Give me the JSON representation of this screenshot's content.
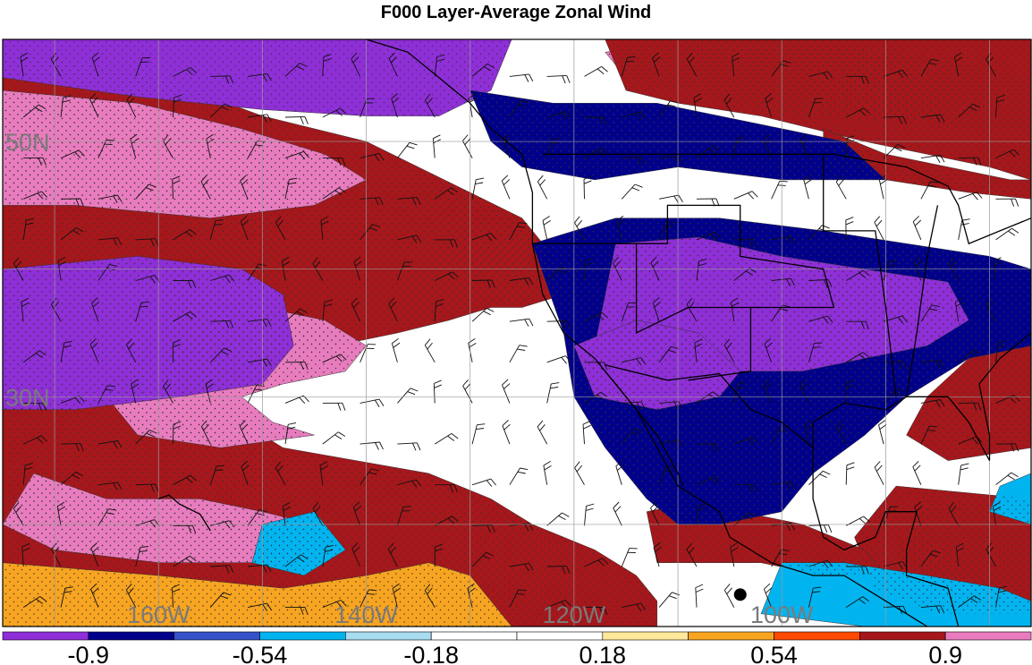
{
  "chart_data": {
    "type": "heatmap",
    "title": "F000 Layer-Average Zonal Wind",
    "lat_labels": [
      {
        "lat": 50,
        "text": "50N"
      },
      {
        "lat": 30,
        "text": "30N"
      }
    ],
    "lon_labels": [
      {
        "lon": -160,
        "text": "160W"
      },
      {
        "lon": -140,
        "text": "140W"
      },
      {
        "lon": -120,
        "text": "120W"
      },
      {
        "lon": -100,
        "text": "100W"
      }
    ],
    "grid": true,
    "colorbar": {
      "min": -1.08,
      "max": 1.08,
      "step": 0.18,
      "tick_labels": [
        "-0.9",
        "-0.54",
        "-0.18",
        "0.18",
        "0.54",
        "0.9"
      ],
      "tick_values": [
        -0.9,
        -0.54,
        -0.18,
        0.18,
        0.54,
        0.9
      ],
      "colors": [
        "#8f2fd8",
        "#00008b",
        "#3552c9",
        "#01b4f0",
        "#a8dcf0",
        "#ffffff",
        "#ffffff",
        "#fee79a",
        "#f7a421",
        "#ff4a00",
        "#a6171b",
        "#e87cbe"
      ]
    },
    "extent": {
      "lon_min": -175,
      "lon_max": -76,
      "lat_min": 12,
      "lat_max": 58
    },
    "regions": [
      {
        "value": 0.72,
        "lonlat": [
          [
            -175,
            57
          ],
          [
            -160,
            55
          ],
          [
            -150,
            52
          ],
          [
            -140,
            50
          ],
          [
            -135,
            48
          ],
          [
            -130,
            46
          ],
          [
            -125,
            44
          ],
          [
            -122,
            41
          ],
          [
            -121,
            38
          ],
          [
            -125,
            37
          ],
          [
            -128,
            37
          ],
          [
            -132,
            36
          ],
          [
            -137,
            35
          ],
          [
            -143,
            34
          ],
          [
            -150,
            32
          ],
          [
            -154,
            30
          ],
          [
            -150,
            27
          ],
          [
            -148,
            26
          ],
          [
            -141,
            25
          ],
          [
            -134,
            24
          ],
          [
            -128,
            22
          ],
          [
            -124,
            20
          ],
          [
            -118,
            18
          ],
          [
            -114,
            16
          ],
          [
            -112,
            14
          ],
          [
            -112,
            12
          ],
          [
            -175,
            12
          ]
        ]
      },
      {
        "value": 0.95,
        "lonlat": [
          [
            -175,
            54
          ],
          [
            -162,
            53
          ],
          [
            -152,
            51
          ],
          [
            -144,
            49
          ],
          [
            -140,
            47
          ],
          [
            -145,
            45
          ],
          [
            -155,
            44
          ],
          [
            -168,
            45
          ],
          [
            -175,
            45
          ]
        ]
      },
      {
        "value": 0.95,
        "lonlat": [
          [
            -158,
            38
          ],
          [
            -150,
            37
          ],
          [
            -144,
            36
          ],
          [
            -140,
            34
          ],
          [
            -142,
            32
          ],
          [
            -148,
            31
          ],
          [
            -152,
            30
          ],
          [
            -149,
            28
          ],
          [
            -145,
            27
          ],
          [
            -154,
            26
          ],
          [
            -162,
            27
          ],
          [
            -165,
            30
          ],
          [
            -163,
            34
          ]
        ]
      },
      {
        "value": 0.95,
        "lonlat": [
          [
            -172,
            24
          ],
          [
            -165,
            22
          ],
          [
            -156,
            22
          ],
          [
            -150,
            21
          ],
          [
            -145,
            20
          ],
          [
            -142,
            18
          ],
          [
            -150,
            17
          ],
          [
            -160,
            17
          ],
          [
            -170,
            18
          ],
          [
            -175,
            20
          ]
        ]
      },
      {
        "value": 0.45,
        "lonlat": [
          [
            -175,
            17
          ],
          [
            -160,
            16
          ],
          [
            -148,
            15
          ],
          [
            -140,
            16
          ],
          [
            -134,
            17
          ],
          [
            -130,
            16
          ],
          [
            -128,
            14
          ],
          [
            -126,
            12
          ],
          [
            -175,
            12
          ]
        ]
      },
      {
        "value": -0.95,
        "lonlat": [
          [
            -175,
            40
          ],
          [
            -162,
            41
          ],
          [
            -152,
            40
          ],
          [
            -148,
            38
          ],
          [
            -147,
            34
          ],
          [
            -150,
            31
          ],
          [
            -158,
            30
          ],
          [
            -168,
            29
          ],
          [
            -175,
            29
          ]
        ]
      },
      {
        "value": -0.95,
        "lonlat": [
          [
            -175,
            58
          ],
          [
            -175,
            55
          ],
          [
            -162,
            53.5
          ],
          [
            -150,
            52.5
          ],
          [
            -140,
            52
          ],
          [
            -133,
            52
          ],
          [
            -128,
            54
          ],
          [
            -126,
            58
          ]
        ]
      },
      {
        "value": 0.95,
        "lonlat": [
          [
            -108,
            58
          ],
          [
            -100,
            58
          ],
          [
            -90,
            57
          ],
          [
            -82,
            56
          ],
          [
            -76,
            55
          ],
          [
            -76,
            51
          ],
          [
            -82,
            51
          ],
          [
            -90,
            52
          ],
          [
            -98,
            52
          ],
          [
            -104,
            53
          ],
          [
            -110,
            54
          ],
          [
            -115,
            55
          ],
          [
            -117,
            57
          ]
        ]
      },
      {
        "value": 0.72,
        "lonlat": [
          [
            -117,
            58
          ],
          [
            -115,
            54
          ],
          [
            -110,
            53
          ],
          [
            -102,
            52
          ],
          [
            -92,
            50
          ],
          [
            -86,
            49
          ],
          [
            -80,
            48
          ],
          [
            -76,
            47
          ],
          [
            -76,
            58
          ]
        ]
      },
      {
        "value": 0.72,
        "lonlat": [
          [
            -96,
            51
          ],
          [
            -90,
            49
          ],
          [
            -84,
            48
          ],
          [
            -78,
            47
          ],
          [
            -76,
            47
          ],
          [
            -76,
            45.5
          ],
          [
            -82,
            46
          ],
          [
            -90,
            47
          ],
          [
            -96,
            48
          ]
        ]
      },
      {
        "value": 0.72,
        "lonlat": [
          [
            -76,
            35
          ],
          [
            -82,
            33
          ],
          [
            -86,
            30
          ],
          [
            -88,
            27
          ],
          [
            -84,
            25
          ],
          [
            -76,
            26
          ]
        ]
      },
      {
        "value": 0.95,
        "lonlat": [
          [
            -86,
            22
          ],
          [
            -80,
            21
          ],
          [
            -76,
            20
          ],
          [
            -76,
            15
          ],
          [
            -80,
            14
          ],
          [
            -86,
            15
          ],
          [
            -89,
            18
          ]
        ]
      },
      {
        "value": 0.72,
        "lonlat": [
          [
            -89,
            23
          ],
          [
            -76,
            22
          ],
          [
            -76,
            13
          ],
          [
            -85,
            13
          ],
          [
            -91,
            15
          ],
          [
            -93,
            19
          ]
        ]
      },
      {
        "value": 0.72,
        "lonlat": [
          [
            -113,
            21
          ],
          [
            -110,
            21.5
          ],
          [
            -104,
            21
          ],
          [
            -98,
            20
          ],
          [
            -92,
            18
          ],
          [
            -90,
            16
          ],
          [
            -96,
            16
          ],
          [
            -102,
            17
          ],
          [
            -108,
            17
          ],
          [
            -112,
            17
          ]
        ]
      },
      {
        "value": -0.75,
        "lonlat": [
          [
            -130,
            54
          ],
          [
            -122,
            53
          ],
          [
            -112,
            53
          ],
          [
            -100,
            51
          ],
          [
            -94,
            50
          ],
          [
            -90,
            47
          ],
          [
            -100,
            47
          ],
          [
            -110,
            48
          ],
          [
            -118,
            47
          ],
          [
            -125,
            48
          ],
          [
            -128,
            50
          ]
        ]
      },
      {
        "value": -0.75,
        "lonlat": [
          [
            -124,
            42
          ],
          [
            -116,
            44
          ],
          [
            -106,
            44
          ],
          [
            -96,
            43
          ],
          [
            -88,
            42
          ],
          [
            -80,
            41
          ],
          [
            -76,
            40
          ],
          [
            -76,
            34
          ],
          [
            -82,
            33
          ],
          [
            -88,
            30
          ],
          [
            -92,
            27
          ],
          [
            -97,
            24
          ],
          [
            -100,
            21
          ],
          [
            -106,
            20
          ],
          [
            -110,
            20
          ],
          [
            -113,
            22
          ],
          [
            -117,
            26
          ],
          [
            -120,
            30
          ],
          [
            -121,
            35
          ]
        ]
      },
      {
        "value": -0.95,
        "lonlat": [
          [
            -116,
            42
          ],
          [
            -108,
            42.5
          ],
          [
            -100,
            41
          ],
          [
            -92,
            40
          ],
          [
            -84,
            39
          ],
          [
            -82,
            36
          ],
          [
            -86,
            34
          ],
          [
            -92,
            33
          ],
          [
            -98,
            32
          ],
          [
            -106,
            32
          ],
          [
            -112,
            33
          ],
          [
            -118,
            34
          ]
        ]
      },
      {
        "value": -0.95,
        "lonlat": [
          [
            -120,
            34
          ],
          [
            -114,
            36
          ],
          [
            -108,
            35
          ],
          [
            -104,
            32
          ],
          [
            -106,
            30
          ],
          [
            -112,
            29
          ],
          [
            -118,
            30
          ]
        ]
      },
      {
        "value": -0.4,
        "lonlat": [
          [
            -150,
            20
          ],
          [
            -145,
            21
          ],
          [
            -142,
            18
          ],
          [
            -146,
            16
          ],
          [
            -151,
            17
          ]
        ]
      },
      {
        "value": -0.4,
        "lonlat": [
          [
            -100,
            17
          ],
          [
            -94,
            17
          ],
          [
            -86,
            16
          ],
          [
            -79,
            15
          ],
          [
            -76,
            14
          ],
          [
            -76,
            12
          ],
          [
            -92,
            12
          ],
          [
            -102,
            13
          ]
        ]
      },
      {
        "value": -0.4,
        "lonlat": [
          [
            -76,
            24
          ],
          [
            -79,
            23
          ],
          [
            -80,
            21
          ],
          [
            -76,
            20
          ]
        ]
      }
    ],
    "stations": [
      [
        -104,
        14.5
      ]
    ]
  }
}
